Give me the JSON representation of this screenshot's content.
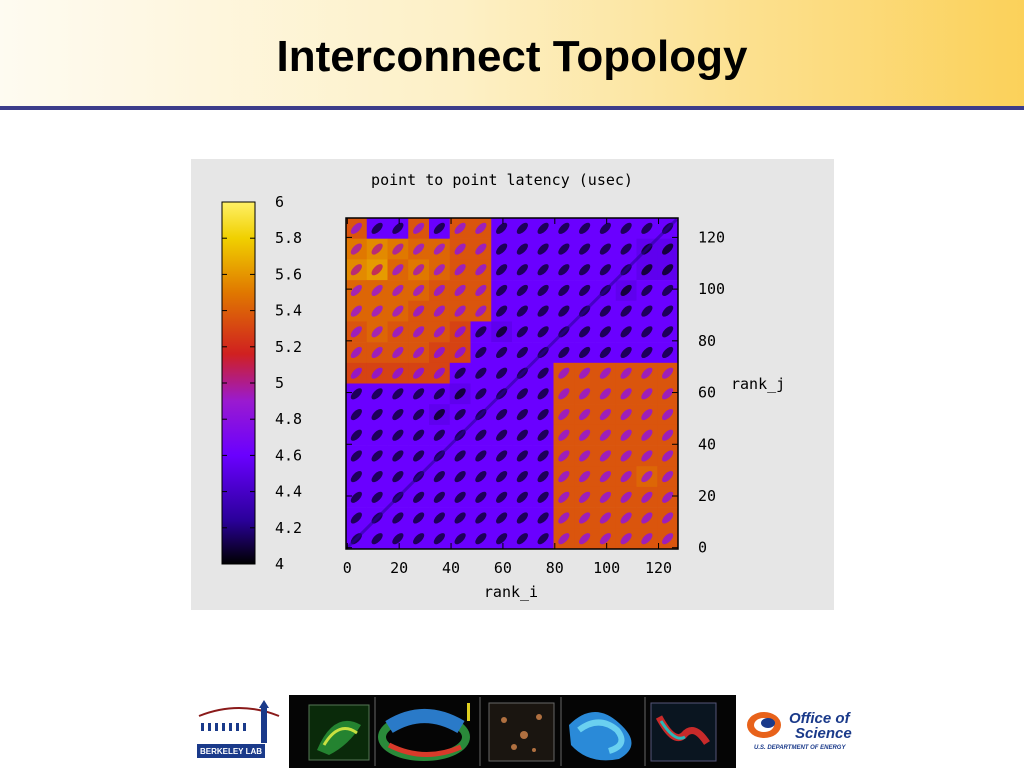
{
  "slide": {
    "title": "Interconnect Topology"
  },
  "chart_data": {
    "type": "heatmap",
    "title": "point to point latency (usec)",
    "xlabel": "rank_i",
    "ylabel": "rank_j",
    "xlim": [
      0,
      127
    ],
    "ylim": [
      0,
      127
    ],
    "x_ticks": [
      "0",
      "20",
      "40",
      "60",
      "80",
      "100",
      "120"
    ],
    "x_tick_values": [
      0,
      20,
      40,
      60,
      80,
      100,
      120
    ],
    "y_ticks": [
      "0",
      "20",
      "40",
      "60",
      "80",
      "100",
      "120"
    ],
    "y_tick_values": [
      0,
      20,
      40,
      60,
      80,
      100,
      120
    ],
    "colorbar": {
      "min": 4,
      "max": 6,
      "ticks": [
        "4",
        "4.2",
        "4.4",
        "4.6",
        "4.8",
        "5",
        "5.2",
        "5.4",
        "5.6",
        "5.8",
        "6"
      ],
      "tick_values": [
        4,
        4.2,
        4.4,
        4.6,
        4.8,
        5,
        5.2,
        5.4,
        5.6,
        5.8,
        6
      ],
      "colors": [
        "#000000",
        "#2a0099",
        "#6a00ff",
        "#9a1ad0",
        "#d02020",
        "#e07800",
        "#f0d000",
        "#fff066"
      ]
    },
    "block_size": 8,
    "block_latency_levels_rows_from_top": [
      [
        5.25,
        4.55,
        4.55,
        5.25,
        4.55,
        5.25,
        5.25,
        4.55,
        4.55,
        4.55,
        4.55,
        4.55,
        4.55,
        4.55,
        4.55,
        4.55
      ],
      [
        5.35,
        5.4,
        5.35,
        5.3,
        5.3,
        5.25,
        5.25,
        4.55,
        4.55,
        4.55,
        4.55,
        4.55,
        4.55,
        4.55,
        4.5,
        4.5
      ],
      [
        5.4,
        5.45,
        5.3,
        5.35,
        5.3,
        5.25,
        5.25,
        4.55,
        4.55,
        4.55,
        4.55,
        4.55,
        4.55,
        4.55,
        4.5,
        4.5
      ],
      [
        5.3,
        5.3,
        5.3,
        5.3,
        5.25,
        5.25,
        5.25,
        4.55,
        4.55,
        4.55,
        4.55,
        4.55,
        4.55,
        4.5,
        4.55,
        4.55
      ],
      [
        5.3,
        5.3,
        5.3,
        5.25,
        5.25,
        5.25,
        5.25,
        4.55,
        4.55,
        4.55,
        4.55,
        4.55,
        4.55,
        4.55,
        4.55,
        4.55
      ],
      [
        5.25,
        5.3,
        5.25,
        5.25,
        5.25,
        5.2,
        4.55,
        4.5,
        4.55,
        4.55,
        4.55,
        4.55,
        4.55,
        4.55,
        4.55,
        4.55
      ],
      [
        5.25,
        5.25,
        5.25,
        5.25,
        5.2,
        5.2,
        4.55,
        4.55,
        4.55,
        4.55,
        4.55,
        4.55,
        4.55,
        4.55,
        4.55,
        4.55
      ],
      [
        5.2,
        5.2,
        5.2,
        5.2,
        5.2,
        4.55,
        4.55,
        4.55,
        4.55,
        4.55,
        5.25,
        5.25,
        5.25,
        5.25,
        5.25,
        5.25
      ],
      [
        4.55,
        4.55,
        4.55,
        4.55,
        4.55,
        4.5,
        4.55,
        4.55,
        4.55,
        4.55,
        5.25,
        5.25,
        5.25,
        5.25,
        5.25,
        5.25
      ],
      [
        4.55,
        4.55,
        4.55,
        4.55,
        4.5,
        4.55,
        4.55,
        4.55,
        4.55,
        4.55,
        5.25,
        5.25,
        5.25,
        5.25,
        5.25,
        5.25
      ],
      [
        4.55,
        4.55,
        4.55,
        4.55,
        4.55,
        4.55,
        4.55,
        4.55,
        4.55,
        4.55,
        5.25,
        5.25,
        5.25,
        5.25,
        5.25,
        5.25
      ],
      [
        4.55,
        4.55,
        4.55,
        4.55,
        4.55,
        4.55,
        4.55,
        4.55,
        4.55,
        4.55,
        5.25,
        5.25,
        5.25,
        5.25,
        5.25,
        5.25
      ],
      [
        4.55,
        4.55,
        4.55,
        4.55,
        4.55,
        4.55,
        4.55,
        4.55,
        4.55,
        4.55,
        5.25,
        5.25,
        5.25,
        5.25,
        5.3,
        5.25
      ],
      [
        4.55,
        4.55,
        4.55,
        4.55,
        4.55,
        4.55,
        4.55,
        4.55,
        4.55,
        4.55,
        5.25,
        5.25,
        5.25,
        5.25,
        5.25,
        5.25
      ],
      [
        4.55,
        4.55,
        4.55,
        4.55,
        4.55,
        4.55,
        4.55,
        4.55,
        4.55,
        4.55,
        5.25,
        5.25,
        5.25,
        5.25,
        5.25,
        5.25
      ],
      [
        4.55,
        4.55,
        4.55,
        4.55,
        4.55,
        4.55,
        4.55,
        4.55,
        4.55,
        4.55,
        5.25,
        5.25,
        5.25,
        5.25,
        5.25,
        5.25
      ]
    ],
    "diagonal_latency": 4.25
  },
  "footer": {
    "left_logo_text": "BERKELEY LAB",
    "right_logo_line1": "Office of",
    "right_logo_line2": "Science",
    "right_logo_line3": "U.S. DEPARTMENT OF ENERGY"
  },
  "colors": {
    "header_rule": "#3c3c8a",
    "chart_bg": "#e6e6e6",
    "doe_blue": "#1a3a8a",
    "doe_orange": "#e8621a"
  }
}
